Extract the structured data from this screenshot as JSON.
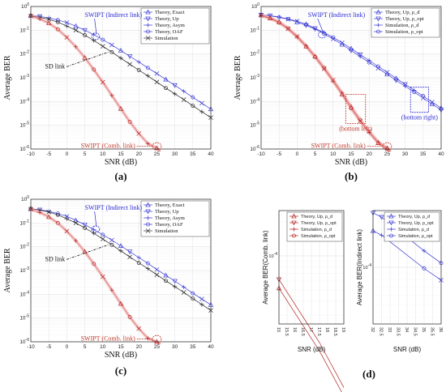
{
  "colors": {
    "indirect": "#3a3ad6",
    "comb": "#b22222",
    "sd": "#222222",
    "grid": "#d9d9d9",
    "ann_blue": "#2b2bd6",
    "ann_red": "#c0392b"
  },
  "chart_data": [
    {
      "id": "a",
      "type": "line",
      "panel_label": "(a)",
      "xlabel": "SNR (dB)",
      "ylabel": "Average BER",
      "yscale": "log",
      "xlim": [
        -10,
        40
      ],
      "ylim_exp": [
        -6,
        0
      ],
      "xticks": [
        -10,
        -5,
        0,
        5,
        10,
        15,
        20,
        25,
        30,
        35,
        40
      ],
      "ytick_labels": [
        "10^-6",
        "10^-5",
        "10^-4",
        "10^-3",
        "10^-2",
        "10^-1",
        "10^0"
      ],
      "legend": [
        "Theory, Exact",
        "Theory, Up",
        "Theory, Asym",
        "Theory, OAF",
        "Simulation"
      ],
      "annotations": {
        "indirect": "SWIPT (Indirect link)",
        "sd": "SD link",
        "comb": "SWIPT (Comb. link)"
      },
      "series": [
        {
          "group": "indirect",
          "x": [
            -10,
            -7.5,
            -5,
            -2.5,
            0,
            2.5,
            5,
            7.5,
            10,
            12.5,
            15,
            17.5,
            20,
            22.5,
            25,
            27.5,
            30,
            32.5,
            35,
            37.5,
            40
          ],
          "y": [
            0.42,
            0.38,
            0.33,
            0.27,
            0.21,
            0.15,
            0.1,
            0.065,
            0.04,
            0.024,
            0.014,
            0.008,
            0.0046,
            0.0026,
            0.0015,
            0.00085,
            0.00048,
            0.00027,
            0.00015,
            8.5e-05,
            4.8e-05
          ]
        },
        {
          "group": "sd",
          "x": [
            -10,
            -7.5,
            -5,
            -2.5,
            0,
            2.5,
            5,
            7.5,
            10,
            12.5,
            15,
            17.5,
            20,
            22.5,
            25,
            27.5,
            30,
            32.5,
            35,
            37.5,
            40
          ],
          "y": [
            0.4,
            0.35,
            0.29,
            0.22,
            0.15,
            0.1,
            0.062,
            0.037,
            0.021,
            0.012,
            0.0067,
            0.0037,
            0.0021,
            0.0012,
            0.00066,
            0.00037,
            0.00021,
            0.00012,
            6.6e-05,
            3.7e-05,
            2.1e-05
          ]
        },
        {
          "group": "comb",
          "x": [
            -10,
            -7.5,
            -5,
            -2.5,
            0,
            2.5,
            5,
            7.5,
            10,
            12.5,
            15,
            17.5,
            20,
            22.5,
            25,
            26
          ],
          "y": [
            0.4,
            0.3,
            0.2,
            0.11,
            0.05,
            0.02,
            0.007,
            0.0022,
            0.00065,
            0.00018,
            5e-05,
            1.4e-05,
            4.5e-06,
            1.7e-06,
            1.1e-06,
            8e-07
          ]
        }
      ]
    },
    {
      "id": "b",
      "type": "line",
      "panel_label": "(b)",
      "xlabel": "SNR (dB)",
      "ylabel": "Average BER",
      "yscale": "log",
      "xlim": [
        -10,
        40
      ],
      "ylim_exp": [
        -6,
        0
      ],
      "xticks": [
        -10,
        -5,
        0,
        5,
        10,
        15,
        20,
        25,
        30,
        35,
        40
      ],
      "ytick_labels": [
        "10^-6",
        "10^-5",
        "10^-4",
        "10^-3",
        "10^-2",
        "10^-1",
        "10^0"
      ],
      "legend": [
        "Theory, Up, ρ_d",
        "Theory, Up, ρ_opt",
        "Simulation, ρ_d",
        "Simulation, ρ_opt"
      ],
      "annotations": {
        "indirect": "SWIPT (Indirect link)",
        "bottom_left": "(bottom left)",
        "bottom_right": "(bottom right)",
        "comb": "SWIPT (Comb. link)"
      },
      "series": [
        {
          "group": "indirect",
          "x": [
            -10,
            -7.5,
            -5,
            -2.5,
            0,
            2.5,
            5,
            7.5,
            10,
            12.5,
            15,
            17.5,
            20,
            22.5,
            25,
            27.5,
            30,
            32.5,
            35,
            37.5,
            40
          ],
          "y": [
            0.45,
            0.41,
            0.36,
            0.3,
            0.24,
            0.18,
            0.12,
            0.08,
            0.05,
            0.03,
            0.017,
            0.0095,
            0.0054,
            0.003,
            0.0017,
            0.00095,
            0.00053,
            0.0003,
            0.00017,
            9.5e-05,
            5.3e-05
          ]
        },
        {
          "group": "indirect",
          "x": [
            -10,
            -7.5,
            -5,
            -2.5,
            0,
            2.5,
            5,
            7.5,
            10,
            12.5,
            15,
            17.5,
            20,
            22.5,
            25,
            27.5,
            30,
            32.5,
            35,
            37.5,
            40
          ],
          "y": [
            0.44,
            0.4,
            0.35,
            0.29,
            0.22,
            0.16,
            0.11,
            0.07,
            0.043,
            0.025,
            0.014,
            0.0078,
            0.0044,
            0.0025,
            0.0014,
            0.00078,
            0.00044,
            0.00025,
            0.00014,
            7.8e-05,
            4.4e-05
          ]
        },
        {
          "group": "comb",
          "x": [
            -10,
            -7.5,
            -5,
            -2.5,
            0,
            2.5,
            5,
            7.5,
            10,
            12.5,
            15,
            17.5,
            20,
            22.5,
            25,
            26
          ],
          "y": [
            0.42,
            0.33,
            0.22,
            0.12,
            0.055,
            0.022,
            0.008,
            0.0026,
            0.0008,
            0.00023,
            6e-05,
            1.7e-05,
            5.5e-06,
            2e-06,
            1.1e-06,
            8e-07
          ]
        },
        {
          "group": "comb",
          "x": [
            -10,
            -7.5,
            -5,
            -2.5,
            0,
            2.5,
            5,
            7.5,
            10,
            12.5,
            15,
            17.5,
            20,
            22.5,
            25,
            26
          ],
          "y": [
            0.41,
            0.32,
            0.21,
            0.115,
            0.052,
            0.021,
            0.0075,
            0.0024,
            0.00072,
            0.0002,
            5.2e-05,
            1.5e-05,
            5e-06,
            1.8e-06,
            1e-06,
            8e-07
          ]
        }
      ]
    },
    {
      "id": "c",
      "type": "line",
      "panel_label": "(c)",
      "xlabel": "SNR (dB)",
      "ylabel": "Average BER",
      "yscale": "log",
      "xlim": [
        -10,
        40
      ],
      "ylim_exp": [
        -6,
        0
      ],
      "xticks": [
        -10,
        -5,
        0,
        5,
        10,
        15,
        20,
        25,
        30,
        35,
        40
      ],
      "ytick_labels": [
        "10^-6",
        "10^-5",
        "10^-4",
        "10^-3",
        "10^-2",
        "10^-1",
        "10^0"
      ],
      "legend": [
        "Theory, Exact",
        "Theory, Up",
        "Theory, Asym",
        "Theory, OAF",
        "Simulation"
      ],
      "annotations": {
        "indirect": "SWIPT (Indirect link)",
        "sd": "SD link",
        "comb": "SWIPT (Comb. link)"
      },
      "series": [
        {
          "group": "indirect",
          "x": [
            -10,
            -7.5,
            -5,
            -2.5,
            0,
            2.5,
            5,
            7.5,
            10,
            12.5,
            15,
            17.5,
            20,
            22.5,
            25,
            27.5,
            30,
            32.5,
            35,
            37.5,
            40
          ],
          "y": [
            0.4,
            0.36,
            0.31,
            0.25,
            0.19,
            0.13,
            0.085,
            0.053,
            0.032,
            0.019,
            0.011,
            0.0062,
            0.0035,
            0.002,
            0.0011,
            0.00063,
            0.00036,
            0.0002,
            0.00011,
            6.3e-05,
            3.6e-05
          ]
        },
        {
          "group": "sd",
          "x": [
            -10,
            -7.5,
            -5,
            -2.5,
            0,
            2.5,
            5,
            7.5,
            10,
            12.5,
            15,
            17.5,
            20,
            22.5,
            25,
            27.5,
            30,
            32.5,
            35,
            37.5,
            40
          ],
          "y": [
            0.4,
            0.35,
            0.29,
            0.22,
            0.15,
            0.1,
            0.062,
            0.037,
            0.021,
            0.012,
            0.0067,
            0.0037,
            0.0021,
            0.0012,
            0.00066,
            0.00037,
            0.00021,
            0.00012,
            6.6e-05,
            3.7e-05,
            2.1e-05
          ]
        },
        {
          "group": "comb",
          "x": [
            -10,
            -7.5,
            -5,
            -2.5,
            0,
            2.5,
            5,
            7.5,
            10,
            12.5,
            15,
            17.5,
            20,
            22.5,
            25,
            26
          ],
          "y": [
            0.38,
            0.28,
            0.18,
            0.1,
            0.045,
            0.018,
            0.0062,
            0.0019,
            0.00055,
            0.00015,
            4e-05,
            1.1e-05,
            3.6e-06,
            1.4e-06,
            1e-06,
            8e-07
          ]
        }
      ]
    },
    {
      "id": "d1",
      "type": "line",
      "panel_label": "(d)",
      "xlabel": "SNR (dB)",
      "ylabel": "Average BER(Comb. link)",
      "yscale": "log",
      "xlim": [
        15,
        19
      ],
      "ylim_exp": [
        -4.6,
        -3.6
      ],
      "xticks": [
        15,
        15.5,
        16,
        16.5,
        17,
        17.5,
        18,
        18.5,
        19
      ],
      "ytick_labels": [
        "10^-4"
      ],
      "legend": [
        "Theory, Up, ρ_d",
        "Theory, Up, ρ_opt",
        "Simulation, ρ_d",
        "Simulation, ρ_opt"
      ],
      "series": [
        {
          "group": "comb",
          "x": [
            15,
            17.5,
            19
          ],
          "y": [
            6.2e-05,
            1.72e-05,
            6.9e-06
          ]
        },
        {
          "group": "comb",
          "x": [
            15,
            17.5,
            19
          ],
          "y": [
            5.2e-05,
            1.45e-05,
            5.8e-06
          ]
        }
      ]
    },
    {
      "id": "d2",
      "type": "line",
      "xlabel": "SNR (dB)",
      "ylabel": "Average BER(Indirect link)",
      "yscale": "log",
      "xlim": [
        32,
        36
      ],
      "ylim_exp": [
        -4.45,
        -3.55
      ],
      "xticks": [
        32,
        32.5,
        33,
        33.5,
        34,
        34.5,
        35,
        35.5,
        36
      ],
      "ytick_labels": [
        "10^-4"
      ],
      "legend": [
        "Theory, Up, ρ_d",
        "Theory, Up, ρ_opt",
        "Simulation, ρ_d",
        "Simulation, ρ_opt"
      ],
      "series": [
        {
          "group": "indirect",
          "x": [
            32,
            32.5,
            35,
            36
          ],
          "y": [
            0.00027,
            0.00025,
            0.000135,
            0.000108
          ]
        },
        {
          "group": "indirect",
          "x": [
            32,
            32.5,
            35,
            36
          ],
          "y": [
            0.000195,
            0.00018,
            9.8e-05,
            7.9e-05
          ]
        }
      ]
    }
  ]
}
